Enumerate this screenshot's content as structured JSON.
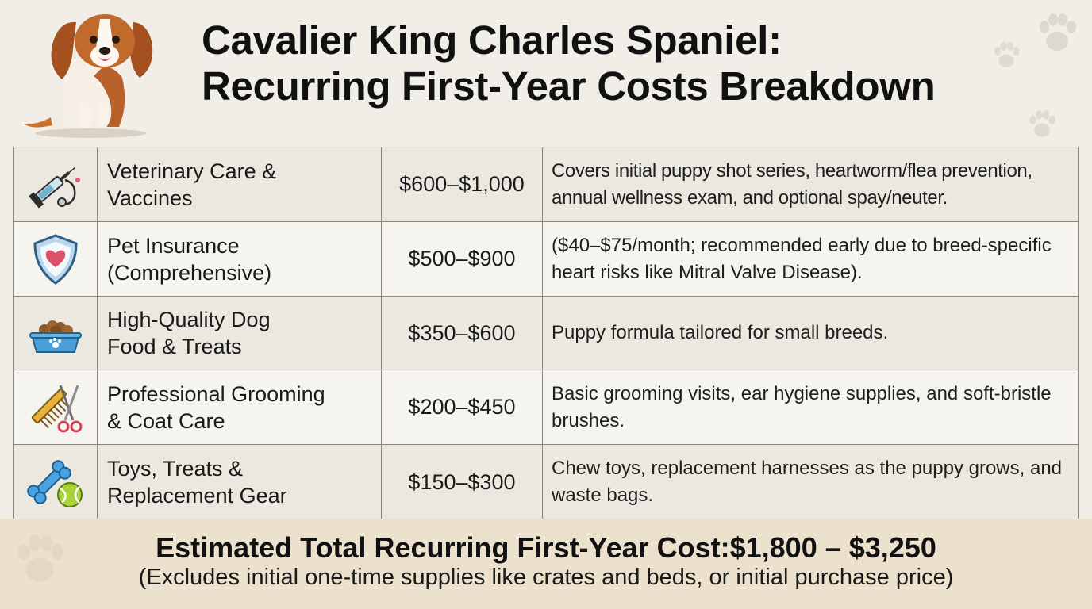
{
  "title_line1": "Cavalier King Charles Spaniel:",
  "title_line2": "Recurring First-Year Costs Breakdown",
  "rows": [
    {
      "icon": "syringe-stethoscope-icon",
      "category_line1": "Veterinary Care &",
      "category_line2": "Vaccines",
      "price": "$600–$1,000",
      "description": "Covers initial puppy shot series, heartworm/flea prevention, annual wellness exam, and optional spay/neuter."
    },
    {
      "icon": "heart-shield-icon",
      "category_line1": "Pet Insurance",
      "category_line2": "(Comprehensive)",
      "price": "$500–$900",
      "description": "($40–$75/month; recommended early due to breed-specific heart risks like Mitral Valve Disease)."
    },
    {
      "icon": "dog-food-bowl-icon",
      "category_line1": "High-Quality Dog",
      "category_line2": "Food & Treats",
      "price": "$350–$600",
      "description": "Puppy formula tailored for small breeds."
    },
    {
      "icon": "comb-scissors-icon",
      "category_line1": "Professional Grooming",
      "category_line2": "& Coat Care",
      "price": "$200–$450",
      "description": "Basic grooming visits, ear hygiene supplies, and soft-bristle brushes."
    },
    {
      "icon": "bone-ball-icon",
      "category_line1": "Toys, Treats &",
      "category_line2": "Replacement Gear",
      "price": "$150–$300",
      "description": "Chew toys, replacement harnesses as the puppy grows, and waste bags."
    }
  ],
  "footer": {
    "total_label": "Estimated Total Recurring First-Year Cost:",
    "total_value": "$1,800 – $3,250",
    "note": "(Excludes initial one-time supplies like crates and beds, or initial purchase price)"
  },
  "colors": {
    "background": "#f1eee7",
    "footer_band": "#ebe1cc",
    "grid_line": "#8a857c"
  }
}
